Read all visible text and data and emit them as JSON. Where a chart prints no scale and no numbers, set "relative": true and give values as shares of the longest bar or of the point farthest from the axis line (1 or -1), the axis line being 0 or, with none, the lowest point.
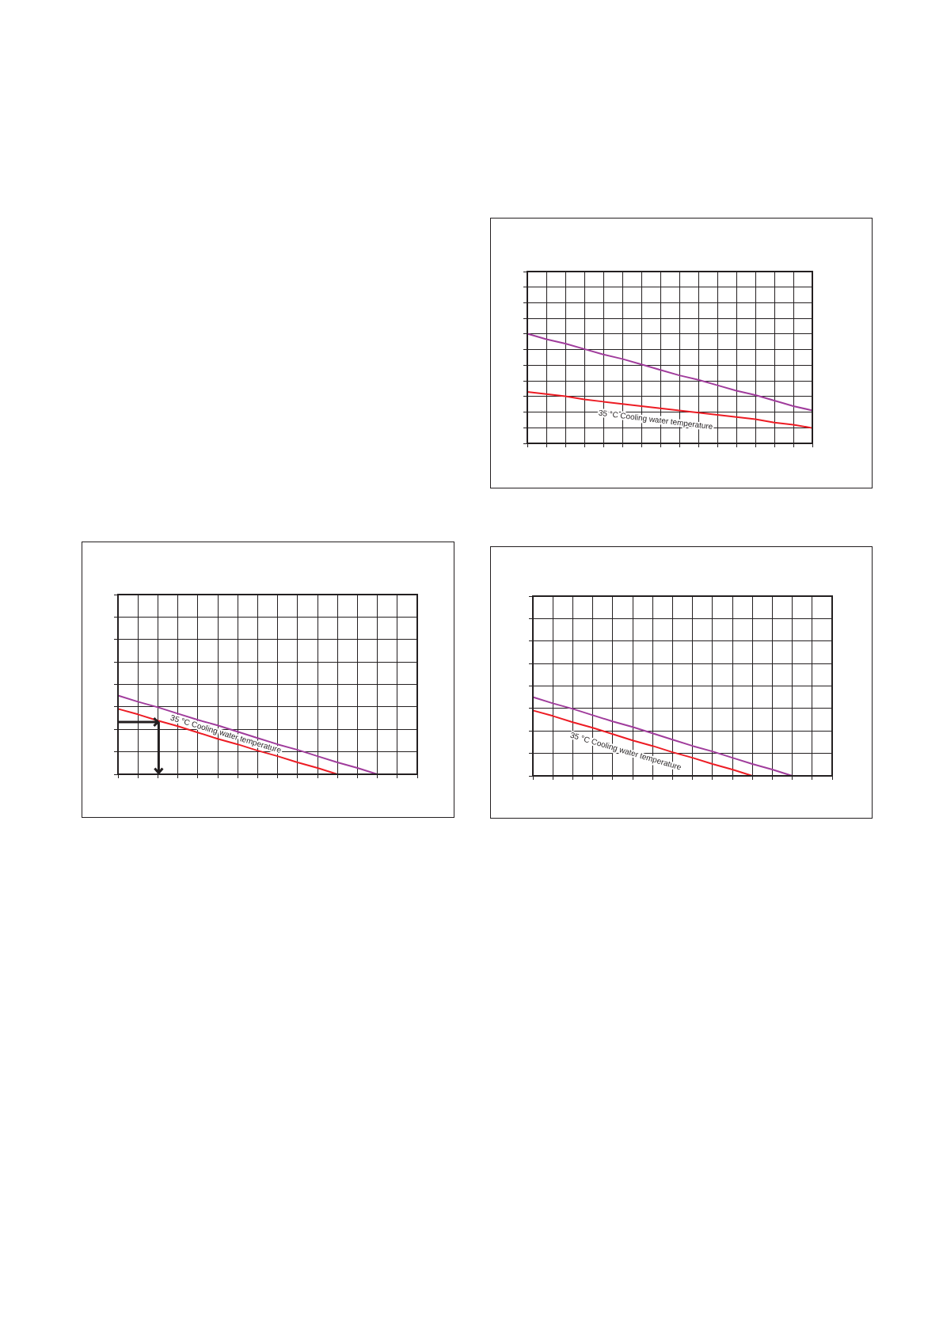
{
  "chart_data": [
    {
      "type": "line",
      "categories": [
        null,
        null,
        null,
        null,
        null,
        null,
        null,
        null,
        null,
        null,
        null,
        null,
        null,
        null,
        null,
        null
      ],
      "relative": true,
      "series": [
        {
          "color": "#a03c9c",
          "values": [
            1,
            0.95,
            0.91,
            0.86,
            0.81,
            0.77,
            0.72,
            0.67,
            0.62,
            0.58,
            0.53,
            0.48,
            0.44,
            0.39,
            0.34,
            0.3
          ]
        },
        {
          "color": "#ed1c24",
          "values": [
            0.47,
            0.45,
            0.43,
            0.4,
            0.38,
            0.36,
            0.34,
            0.32,
            0.3,
            0.28,
            0.26,
            0.24,
            0.22,
            0.19,
            0.17,
            0.14
          ]
        }
      ],
      "annotations": [
        "35 °C Cooling water temperature"
      ],
      "grid": true,
      "marker": "none",
      "line_style": "solid",
      "tick_labels": false
    },
    {
      "type": "line",
      "categories": [
        null,
        null,
        null,
        null,
        null,
        null,
        null,
        null,
        null,
        null,
        null,
        null,
        null,
        null,
        null,
        null
      ],
      "relative": true,
      "series": [
        {
          "color": "#a03c9c",
          "values": [
            1,
            0.92,
            0.85,
            0.77,
            0.69,
            0.62,
            0.54,
            0.46,
            0.38,
            0.31,
            0.23,
            0.15,
            0.08,
            0,
            null,
            null
          ]
        },
        {
          "color": "#ed1c24",
          "values": [
            0.83,
            0.76,
            0.68,
            0.61,
            0.53,
            0.45,
            0.38,
            0.3,
            0.23,
            0.15,
            0.08,
            0,
            null,
            null,
            null,
            null
          ]
        }
      ],
      "annotations": [
        "35 °C Cooling water temperature"
      ],
      "grid": true,
      "marker": "none",
      "line_style": "solid",
      "tick_labels": false
    },
    {
      "type": "line",
      "categories": [
        null,
        null,
        null,
        null,
        null,
        null,
        null,
        null,
        null,
        null,
        null,
        null,
        null,
        null,
        null,
        null
      ],
      "relative": true,
      "series": [
        {
          "color": "#a03c9c",
          "values": [
            1,
            0.92,
            0.85,
            0.77,
            0.69,
            0.62,
            0.54,
            0.46,
            0.38,
            0.31,
            0.23,
            0.15,
            0.08,
            0,
            null,
            null
          ]
        },
        {
          "color": "#ed1c24",
          "values": [
            0.83,
            0.76,
            0.68,
            0.61,
            0.53,
            0.45,
            0.38,
            0.3,
            0.23,
            0.15,
            0.08,
            0,
            null,
            null,
            null,
            null
          ]
        }
      ],
      "annotations": [
        "35 °C Cooling water temperature"
      ],
      "grid": true,
      "marker": "none",
      "line_style": "solid",
      "tick_labels": false
    }
  ]
}
